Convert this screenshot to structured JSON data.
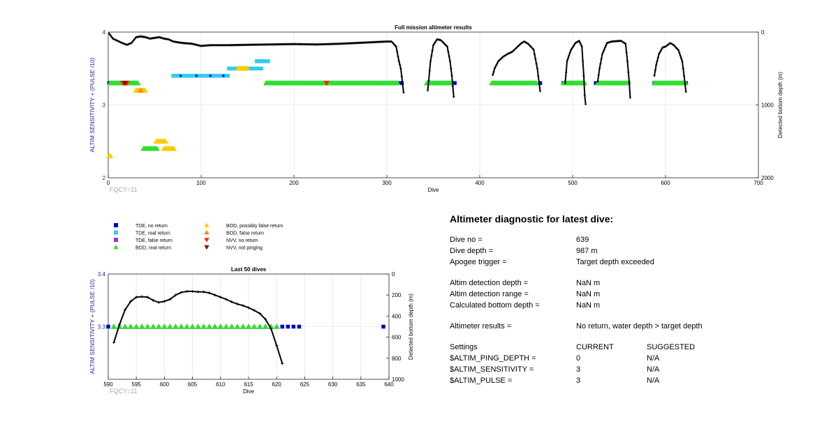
{
  "top_chart": {
    "title": "Full mission altimeter results",
    "xlabel": "Dive",
    "ylabel_left": "ALTIM SENSITIVITY + (PULSE /10)",
    "ylabel_right": "Detected bottom depth (m)",
    "xticks": [
      "0",
      "100",
      "200",
      "300",
      "400",
      "500",
      "600",
      "700"
    ],
    "yticks_left": [
      "2",
      "3",
      "4"
    ],
    "yticks_right": [
      "0",
      "1000",
      "2000"
    ],
    "note": "FQCY=11"
  },
  "bottom_chart": {
    "title": "Last 50 dives",
    "xlabel": "Dive",
    "ylabel_left": "ALTIM SENSITIVITY + (PULSE /10)",
    "ylabel_right": "Detected bottom depth (m)",
    "xticks": [
      "590",
      "595",
      "600",
      "605",
      "610",
      "615",
      "620",
      "625",
      "630",
      "635",
      "640"
    ],
    "yticks_left": [
      "3.3",
      "3.4"
    ],
    "yticks_right": [
      "0",
      "200",
      "400",
      "600",
      "800",
      "1000"
    ],
    "note": "FQCY=11"
  },
  "legend": {
    "items": [
      {
        "label": "TDE, no return",
        "marker": "square",
        "color": "#0000cc"
      },
      {
        "label": "TDE, real return",
        "marker": "square",
        "color": "#33ccee"
      },
      {
        "label": "TDE, false return",
        "marker": "square",
        "color": "#9933cc"
      },
      {
        "label": "BOD, real return",
        "marker": "triangle-up",
        "color": "#33dd33"
      },
      {
        "label": "BOD, possibly false return",
        "marker": "triangle-up",
        "color": "#ffcc00"
      },
      {
        "label": "BOD, false return",
        "marker": "triangle-up",
        "color": "#ff8800"
      },
      {
        "label": "NVV, no return",
        "marker": "triangle-down",
        "color": "#ff2200"
      },
      {
        "label": "NVV, not pinging",
        "marker": "triangle-down",
        "color": "#990000"
      }
    ]
  },
  "diagnostic": {
    "title": "Altimeter diagnostic for latest dive:",
    "dive_no_label": "Dive no =",
    "dive_no": "639",
    "dive_depth_label": "Dive depth =",
    "dive_depth": "987 m",
    "apogee_label": "Apogee trigger =",
    "apogee": "Target depth exceeded",
    "det_depth_label": "Altim detection depth =",
    "det_depth": "NaN m",
    "det_range_label": "Altim detection range =",
    "det_range": "NaN m",
    "calc_depth_label": "Calculated bottom depth =",
    "calc_depth": "NaN m",
    "results_label": "Altimeter results =",
    "results": "No return, water depth > target depth",
    "settings_label": "Settings",
    "current_label": "CURRENT",
    "suggested_label": "SUGGESTED",
    "settings": [
      {
        "name": "$ALTIM_PING_DEPTH =",
        "current": "0",
        "suggested": "N/A"
      },
      {
        "name": "$ALTIM_SENSITIVITY =",
        "current": "3",
        "suggested": "N/A"
      },
      {
        "name": "$ALTIM_PULSE =",
        "current": "3",
        "suggested": "N/A"
      }
    ]
  },
  "chart_data": [
    {
      "type": "scatter",
      "title": "Full mission altimeter results",
      "xlabel": "Dive",
      "ylabel": "ALTIM SENSITIVITY + (PULSE /10)",
      "y2label": "Detected bottom depth (m)",
      "xlim": [
        0,
        700
      ],
      "ylim": [
        2,
        4
      ],
      "y2lim": [
        2000,
        0
      ],
      "grid": true,
      "series": [
        {
          "name": "TDE, no return",
          "marker": "square",
          "color": "#0000cc",
          "x": [
            1,
            313,
            316,
            370,
            373,
            415,
            465,
            490,
            510,
            525,
            560,
            588,
            622
          ],
          "y": [
            3.3,
            3.3,
            3.3,
            3.3,
            3.3,
            3.3,
            3.3,
            3.3,
            3.3,
            3.3,
            3.3,
            3.3,
            3.3
          ]
        },
        {
          "name": "TDE, real return",
          "marker": "square",
          "color": "#33ccee",
          "segments": [
            [
              70,
              130,
              3.4
            ],
            [
              130,
              165,
              3.5
            ],
            [
              160,
              172,
              3.6
            ]
          ]
        },
        {
          "name": "BOD, real return",
          "marker": "triangle-up",
          "color": "#33dd33",
          "segments": [
            [
              2,
              32,
              3.3
            ],
            [
              170,
              312,
              3.3
            ],
            [
              343,
              370,
              3.3
            ],
            [
              413,
              462,
              3.3
            ],
            [
              490,
              513,
              3.3
            ],
            [
              527,
              560,
              3.3
            ],
            [
              588,
              622,
              3.3
            ],
            [
              38,
              53,
              2.4
            ]
          ]
        },
        {
          "name": "BOD, possibly false return",
          "marker": "triangle-up",
          "color": "#ffcc00",
          "segments": [
            [
              30,
              40,
              3.2
            ],
            [
              52,
              62,
              2.5
            ],
            [
              60,
              72,
              2.4
            ],
            [
              1,
              3,
              2.3
            ],
            [
              140,
              150,
              3.5
            ]
          ]
        },
        {
          "name": "BOD, false return",
          "marker": "triangle-up",
          "color": "#ff8800",
          "x": [
            35
          ],
          "y": [
            3.2
          ]
        },
        {
          "name": "NVV, no return",
          "marker": "triangle-down",
          "color": "#ff2200",
          "x": [
            16,
            20,
            235
          ],
          "y": [
            3.3,
            3.3,
            3.3
          ]
        },
        {
          "name": "NVV, not pinging",
          "marker": "triangle-down",
          "color": "#990000",
          "x": [
            18
          ],
          "y": [
            3.3
          ]
        },
        {
          "name": "Detected bottom depth",
          "axis": "right",
          "color": "#000000",
          "dives": [
            [
              [
                1,
                20
              ],
              [
                5,
                90
              ],
              [
                10,
                120
              ],
              [
                15,
                150
              ],
              [
                20,
                175
              ],
              [
                25,
                150
              ],
              [
                30,
                70
              ],
              [
                35,
                60
              ],
              [
                40,
                70
              ],
              [
                45,
                90
              ],
              [
                50,
                80
              ],
              [
                55,
                70
              ],
              [
                60,
                90
              ],
              [
                65,
                100
              ],
              [
                70,
                130
              ],
              [
                80,
                150
              ],
              [
                90,
                160
              ],
              [
                100,
                190
              ],
              [
                110,
                180
              ],
              [
                120,
                180
              ],
              [
                130,
                180
              ],
              [
                150,
                175
              ],
              [
                175,
                170
              ],
              [
                200,
                165
              ],
              [
                225,
                170
              ],
              [
                250,
                160
              ],
              [
                275,
                145
              ],
              [
                300,
                130
              ],
              [
                305,
                130
              ],
              [
                310,
                200
              ],
              [
                313,
                400
              ],
              [
                315,
                500
              ],
              [
                316,
                610
              ],
              [
                318,
                830
              ]
            ],
            [
              [
                344,
                800
              ],
              [
                347,
                400
              ],
              [
                350,
                180
              ],
              [
                354,
                100
              ],
              [
                358,
                110
              ],
              [
                365,
                200
              ],
              [
                368,
                400
              ],
              [
                370,
                600
              ],
              [
                372,
                890
              ]
            ],
            [
              [
                414,
                590
              ],
              [
                416,
                500
              ],
              [
                420,
                400
              ],
              [
                425,
                340
              ],
              [
                430,
                300
              ],
              [
                435,
                270
              ],
              [
                440,
                210
              ],
              [
                445,
                150
              ],
              [
                448,
                130
              ],
              [
                452,
                160
              ],
              [
                458,
                240
              ],
              [
                462,
                500
              ],
              [
                465,
                810
              ]
            ],
            [
              [
                492,
                700
              ],
              [
                494,
                400
              ],
              [
                498,
                250
              ],
              [
                503,
                150
              ],
              [
                507,
                120
              ],
              [
                510,
                200
              ],
              [
                512,
                600
              ],
              [
                513,
                870
              ],
              [
                514,
                990
              ]
            ],
            [
              [
                527,
                680
              ],
              [
                529,
                500
              ],
              [
                532,
                300
              ],
              [
                537,
                150
              ],
              [
                542,
                130
              ],
              [
                552,
                120
              ],
              [
                557,
                160
              ],
              [
                559,
                400
              ],
              [
                561,
                700
              ],
              [
                562,
                900
              ]
            ],
            [
              [
                588,
                600
              ],
              [
                590,
                450
              ],
              [
                593,
                300
              ],
              [
                597,
                210
              ],
              [
                600,
                200
              ],
              [
                605,
                150
              ],
              [
                609,
                180
              ],
              [
                614,
                250
              ],
              [
                618,
                400
              ],
              [
                620,
                600
              ],
              [
                622,
                820
              ]
            ]
          ]
        }
      ]
    },
    {
      "type": "scatter",
      "title": "Last 50 dives",
      "xlabel": "Dive",
      "ylabel": "ALTIM SENSITIVITY + (PULSE /10)",
      "y2label": "Detected bottom depth (m)",
      "xlim": [
        590,
        640
      ],
      "ylim": [
        3.2,
        3.4
      ],
      "y2lim": [
        1000,
        0
      ],
      "grid": true,
      "series": [
        {
          "name": "TDE, no return",
          "marker": "square",
          "color": "#0000cc",
          "x": [
            590,
            621,
            622,
            623,
            624,
            639
          ],
          "y": [
            3.3,
            3.3,
            3.3,
            3.3,
            3.3,
            3.3
          ]
        },
        {
          "name": "BOD, real return",
          "marker": "triangle-up",
          "color": "#33dd33",
          "x": [
            591,
            592,
            593,
            594,
            595,
            596,
            597,
            598,
            599,
            600,
            601,
            602,
            603,
            604,
            605,
            606,
            607,
            608,
            609,
            610,
            611,
            612,
            613,
            614,
            615,
            616,
            617,
            618,
            619,
            620
          ],
          "y": [
            3.3,
            3.3,
            3.3,
            3.3,
            3.3,
            3.3,
            3.3,
            3.3,
            3.3,
            3.3,
            3.3,
            3.3,
            3.3,
            3.3,
            3.3,
            3.3,
            3.3,
            3.3,
            3.3,
            3.3,
            3.3,
            3.3,
            3.3,
            3.3,
            3.3,
            3.3,
            3.3,
            3.3,
            3.3,
            3.3
          ]
        },
        {
          "name": "Detected bottom depth",
          "axis": "right",
          "color": "#000000",
          "x": [
            591,
            592,
            593,
            594,
            595,
            596,
            597,
            598,
            599,
            600,
            601,
            602,
            603,
            604,
            605,
            606,
            607,
            608,
            609,
            610,
            611,
            612,
            613,
            614,
            615,
            616,
            617,
            618,
            619,
            620,
            621
          ],
          "y": [
            650,
            480,
            340,
            260,
            220,
            215,
            220,
            250,
            270,
            260,
            240,
            200,
            175,
            165,
            165,
            170,
            170,
            180,
            200,
            220,
            240,
            265,
            285,
            300,
            320,
            345,
            375,
            430,
            520,
            680,
            850
          ]
        }
      ]
    }
  ]
}
